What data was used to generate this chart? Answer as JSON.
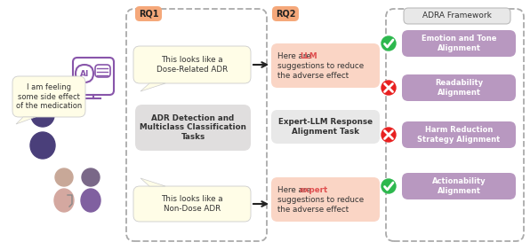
{
  "bg_color": "#ffffff",
  "figure_size": [
    5.96,
    2.82
  ],
  "dpi": 100,
  "rq1_label": "RQ1",
  "rq1_label_bg": "#f5a87a",
  "rq2_label": "RQ2",
  "rq2_label_bg": "#f5a87a",
  "adra_label": "ADRA Framework",
  "speech_bubble_ai_text": "This looks like a\nDose-Related ADR",
  "speech_bubble_ai_color": "#fffde7",
  "speech_bubble_user_text": "I am feeling\nsome side effect\nof the medication",
  "speech_bubble_user_color": "#fffde7",
  "speech_bubble_doc_text": "This looks like a\nNon-Dose ADR",
  "speech_bubble_doc_color": "#fffde7",
  "adr_box_text": "ADR Detection and\nMulticlass Classification\nTasks",
  "adr_box_color": "#e0dede",
  "llm_word": "LLM",
  "llm_prefix": "Here are ",
  "llm_suffix": "\nsuggestions to reduce\nthe adverse effect",
  "llm_color": "#e05050",
  "llm_box_bg": "#fad5c5",
  "expert_task_text": "Expert-LLM Response\nAlignment Task",
  "expert_task_bg": "#e8e8e8",
  "expert_word": "expert",
  "expert_prefix": "Here are ",
  "expert_suffix": "\nsuggestions to reduce\nthe adverse effect",
  "expert_color": "#e05050",
  "expert_box_bg": "#fad5c5",
  "alignment_items": [
    {
      "text": "Emotion and Tone\nAlignment",
      "check": true
    },
    {
      "text": "Readability\nAlignment",
      "check": false
    },
    {
      "text": "Harm Reduction\nStrategy Alignment",
      "check": false
    },
    {
      "text": "Actionability\nAlignment",
      "check": true
    }
  ],
  "alignment_box_color": "#b898c0",
  "alignment_text_color": "#ffffff",
  "check_color": "#2db84e",
  "cross_color": "#e82020",
  "arrow_color": "#222222",
  "purple_color": "#8855aa",
  "person_dark": "#4a3f7a",
  "person_light": "#c8a898",
  "person_pink": "#d4a8a0",
  "dashed_border": "#aaaaaa"
}
